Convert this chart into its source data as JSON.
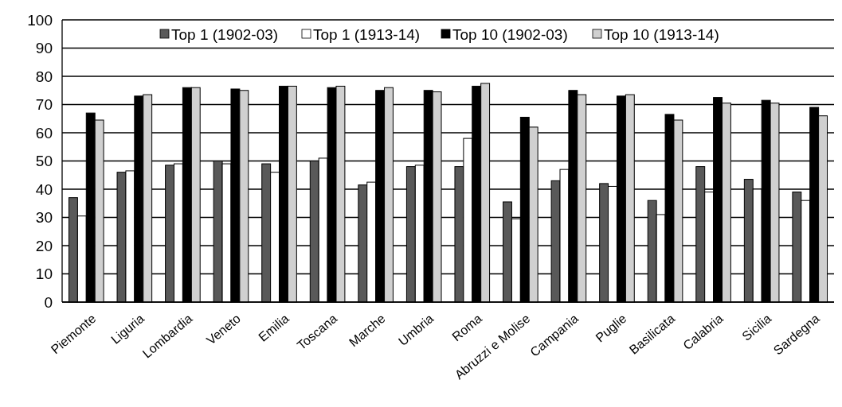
{
  "chart_data": {
    "type": "bar",
    "categories": [
      "Piemonte",
      "Liguria",
      "Lombardia",
      "Veneto",
      "Emilia",
      "Toscana",
      "Marche",
      "Umbria",
      "Roma",
      "Abruzzi e Molise",
      "Campania",
      "Puglie",
      "Basilicata",
      "Calabria",
      "Sicilia",
      "Sardegna"
    ],
    "series": [
      {
        "name": "Top 1 (1902-03)",
        "color": "#595959",
        "values": [
          37,
          46,
          48.5,
          50,
          49,
          50,
          41.5,
          48,
          48,
          35.5,
          43,
          42,
          36,
          48,
          43.5,
          39
        ]
      },
      {
        "name": "Top 1 (1913-14)",
        "color": "#ffffff",
        "values": [
          30.5,
          46.5,
          49,
          49,
          46,
          51,
          42.5,
          48.5,
          58,
          29.5,
          47,
          41,
          31,
          39,
          40,
          36
        ]
      },
      {
        "name": "Top 10 (1902-03)",
        "color": "#000000",
        "values": [
          67,
          73,
          76,
          75.5,
          76.5,
          76,
          75,
          75,
          76.5,
          65.5,
          75,
          73,
          66.5,
          72.5,
          71.5,
          69
        ]
      },
      {
        "name": "Top 10 (1913-14)",
        "color": "#d0d0d0",
        "values": [
          64.5,
          73.5,
          76,
          75,
          76.5,
          76.5,
          76,
          74.5,
          77.5,
          62,
          73.5,
          73.5,
          64.5,
          70.5,
          70.5,
          66
        ]
      }
    ],
    "ylim": [
      0,
      100
    ],
    "yticks": [
      0,
      10,
      20,
      30,
      40,
      50,
      60,
      70,
      80,
      90,
      100
    ],
    "grid": "y",
    "legend": "top"
  }
}
